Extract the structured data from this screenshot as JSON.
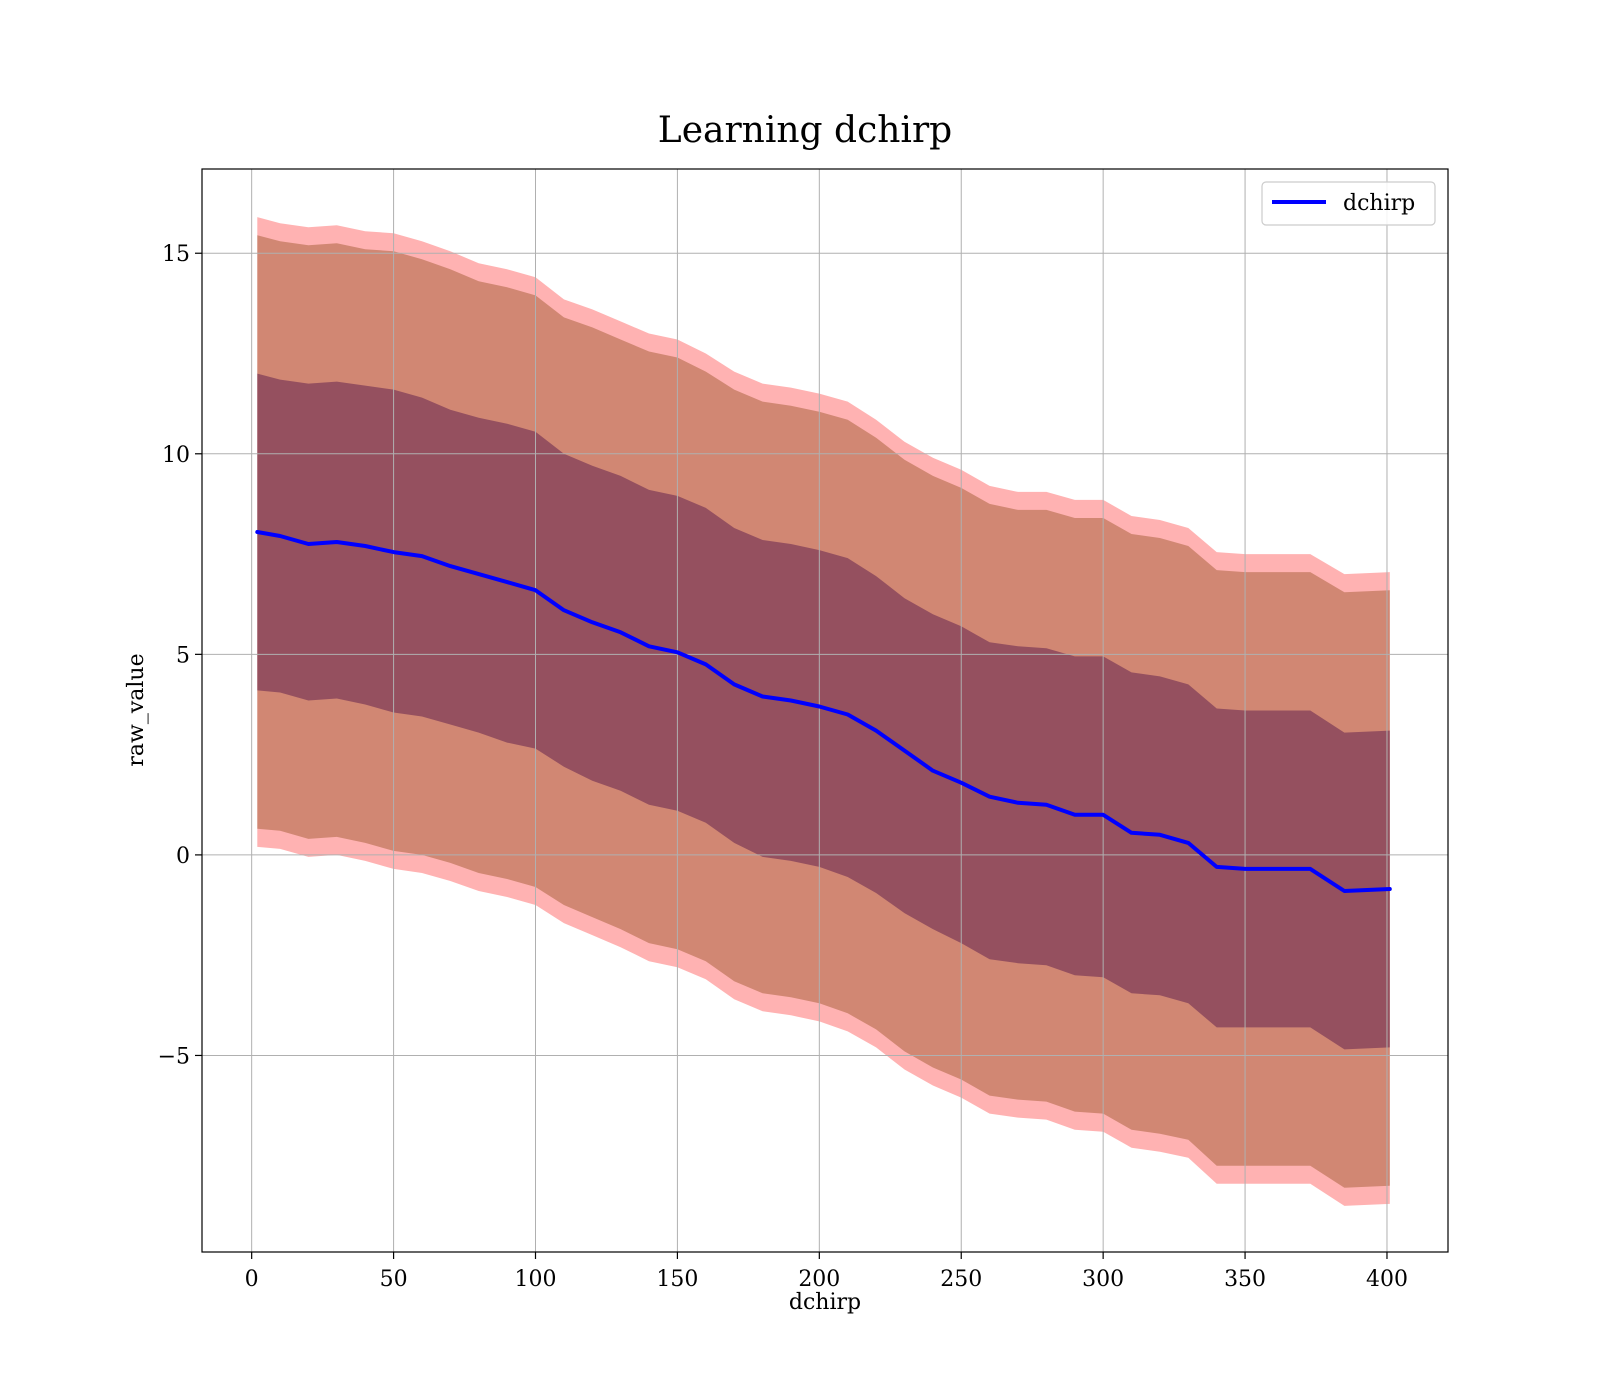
{
  "chart_data": {
    "type": "line",
    "title": "Learning dchirp",
    "xlabel": "dchirp",
    "ylabel": "raw_value",
    "xlim": [
      -17.5,
      421.5
    ],
    "ylim": [
      -9.9,
      17.1
    ],
    "x_ticks": [
      0,
      50,
      100,
      150,
      200,
      250,
      300,
      350,
      400
    ],
    "x_tick_labels": [
      "0",
      "50",
      "100",
      "150",
      "200",
      "250",
      "300",
      "350",
      "400"
    ],
    "y_ticks": [
      -5,
      0,
      5,
      10,
      15
    ],
    "y_tick_labels": [
      "−5",
      "0",
      "5",
      "10",
      "15"
    ],
    "grid": true,
    "legend": {
      "position": "top-right",
      "entries": [
        "dchirp"
      ]
    },
    "colors": {
      "line": "#0000ff",
      "band_outer": "#ff0000",
      "band_mid": "#8b4513",
      "band_inner": "#4b0e46"
    },
    "series": [
      {
        "name": "dchirp",
        "x": [
          2,
          10,
          20,
          30,
          40,
          50,
          60,
          70,
          80,
          90,
          100,
          110,
          120,
          130,
          140,
          150,
          160,
          170,
          180,
          190,
          200,
          210,
          220,
          230,
          240,
          250,
          260,
          270,
          280,
          290,
          300,
          310,
          320,
          330,
          340,
          350,
          360,
          373,
          385,
          401
        ],
        "y": [
          8.05,
          7.95,
          7.75,
          7.8,
          7.7,
          7.55,
          7.45,
          7.2,
          7.0,
          6.8,
          6.6,
          6.1,
          5.8,
          5.55,
          5.2,
          5.05,
          4.75,
          4.25,
          3.95,
          3.85,
          3.7,
          3.5,
          3.1,
          2.6,
          2.1,
          1.8,
          1.45,
          1.3,
          1.25,
          1.0,
          1.0,
          0.55,
          0.5,
          0.3,
          -0.3,
          -0.35,
          -0.35,
          -0.35,
          -0.9,
          -0.85
        ]
      }
    ],
    "bands": [
      {
        "sigma": 1,
        "upper": [
          12.0,
          11.85,
          11.75,
          11.8,
          11.7,
          11.6,
          11.4,
          11.1,
          10.9,
          10.75,
          10.55,
          10.0,
          9.7,
          9.45,
          9.1,
          8.95,
          8.65,
          8.15,
          7.85,
          7.75,
          7.6,
          7.4,
          6.95,
          6.4,
          6.0,
          5.7,
          5.3,
          5.2,
          5.15,
          4.95,
          4.95,
          4.55,
          4.45,
          4.25,
          3.65,
          3.6,
          3.6,
          3.6,
          3.05,
          3.1
        ],
        "lower": [
          4.1,
          4.05,
          3.85,
          3.9,
          3.75,
          3.55,
          3.45,
          3.25,
          3.05,
          2.8,
          2.65,
          2.2,
          1.85,
          1.6,
          1.25,
          1.1,
          0.8,
          0.3,
          -0.05,
          -0.15,
          -0.3,
          -0.55,
          -0.95,
          -1.45,
          -1.85,
          -2.2,
          -2.6,
          -2.7,
          -2.75,
          -3.0,
          -3.05,
          -3.45,
          -3.5,
          -3.7,
          -4.3,
          -4.3,
          -4.3,
          -4.3,
          -4.85,
          -4.8
        ]
      },
      {
        "sigma": 2,
        "upper": [
          15.45,
          15.3,
          15.2,
          15.25,
          15.1,
          15.05,
          14.85,
          14.6,
          14.3,
          14.15,
          13.95,
          13.4,
          13.15,
          12.85,
          12.55,
          12.4,
          12.05,
          11.6,
          11.3,
          11.2,
          11.05,
          10.85,
          10.4,
          9.85,
          9.45,
          9.15,
          8.75,
          8.6,
          8.6,
          8.4,
          8.4,
          8.0,
          7.9,
          7.7,
          7.1,
          7.05,
          7.05,
          7.05,
          6.55,
          6.6
        ],
        "lower": [
          0.65,
          0.6,
          0.4,
          0.45,
          0.3,
          0.1,
          0.0,
          -0.2,
          -0.45,
          -0.6,
          -0.8,
          -1.25,
          -1.55,
          -1.85,
          -2.2,
          -2.35,
          -2.65,
          -3.15,
          -3.45,
          -3.55,
          -3.7,
          -3.95,
          -4.35,
          -4.9,
          -5.3,
          -5.6,
          -6.0,
          -6.1,
          -6.15,
          -6.4,
          -6.45,
          -6.85,
          -6.95,
          -7.1,
          -7.75,
          -7.75,
          -7.75,
          -7.75,
          -8.3,
          -8.25
        ]
      },
      {
        "sigma": 3,
        "upper": [
          15.9,
          15.75,
          15.65,
          15.7,
          15.55,
          15.5,
          15.3,
          15.05,
          14.75,
          14.6,
          14.4,
          13.85,
          13.6,
          13.3,
          13.0,
          12.85,
          12.5,
          12.05,
          11.75,
          11.65,
          11.5,
          11.3,
          10.85,
          10.3,
          9.9,
          9.6,
          9.2,
          9.05,
          9.05,
          8.85,
          8.85,
          8.45,
          8.35,
          8.15,
          7.55,
          7.5,
          7.5,
          7.5,
          7.0,
          7.05
        ],
        "lower": [
          0.2,
          0.15,
          -0.05,
          0.0,
          -0.15,
          -0.35,
          -0.45,
          -0.65,
          -0.9,
          -1.05,
          -1.25,
          -1.7,
          -2.0,
          -2.3,
          -2.65,
          -2.8,
          -3.1,
          -3.6,
          -3.9,
          -4.0,
          -4.15,
          -4.4,
          -4.8,
          -5.35,
          -5.75,
          -6.05,
          -6.45,
          -6.55,
          -6.6,
          -6.85,
          -6.9,
          -7.3,
          -7.4,
          -7.55,
          -8.2,
          -8.2,
          -8.2,
          -8.2,
          -8.75,
          -8.7
        ]
      }
    ]
  }
}
